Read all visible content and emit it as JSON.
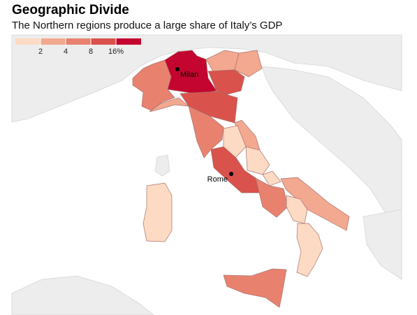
{
  "header": {
    "title": "Geographic Divide",
    "subtitle": "The Northern regions produce a large share of Italy’s GDP"
  },
  "legend": {
    "colors": [
      "#fddac3",
      "#f3a890",
      "#e8826f",
      "#d9524b",
      "#c4052f"
    ],
    "ticks": [
      2,
      4,
      8,
      {
        "value": 16,
        "label": "16%"
      }
    ]
  },
  "cities": [
    {
      "name": "Milan"
    },
    {
      "name": "Rome"
    }
  ]
}
